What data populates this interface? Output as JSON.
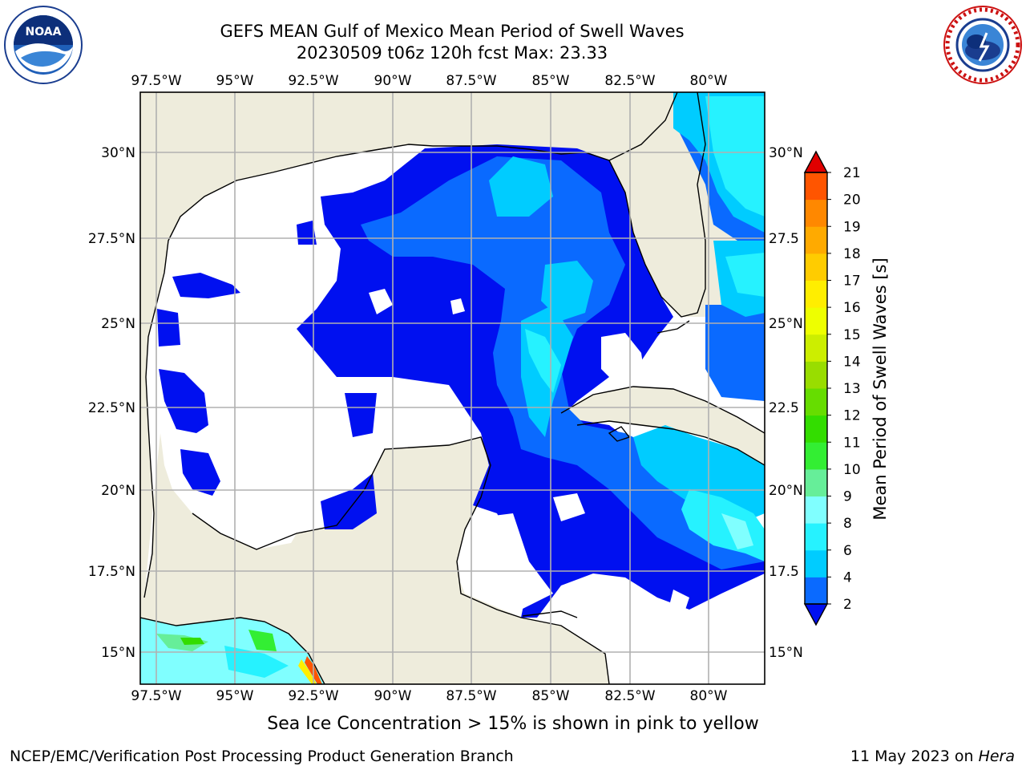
{
  "header": {
    "title_line1": "GEFS MEAN Gulf of Mexico Mean Period of Swell Waves",
    "title_line2": "20230509 t06z 120h fcst   Max: 23.33"
  },
  "logos": {
    "left": "NOAA logo",
    "right": "National Weather Service logo"
  },
  "map": {
    "lon_labels": [
      "97.5°W",
      "95°W",
      "92.5°W",
      "90°W",
      "87.5°W",
      "85°W",
      "82.5°W",
      "80°W"
    ],
    "lat_labels_left": [
      "30°N",
      "27.5°N",
      "25°N",
      "22.5°N",
      "20°N",
      "17.5°N",
      "15°N"
    ],
    "lat_labels_right": [
      "30°N",
      "27.5",
      "25°N",
      "22.5",
      "20°N",
      "17.5",
      "15°N"
    ],
    "colors": {
      "land": "#eeecdc",
      "coastline": "#000000",
      "gridlines": "#b0b0b0",
      "under_2s": "#0010f0",
      "2_4s": "#0a6aff",
      "4_6s": "#00ccff",
      "6_8s": "#26f2ff",
      "8_9s": "#80ffff",
      "9_10s": "#66ee99"
    }
  },
  "colorbar": {
    "label": "Mean Period of Swell Waves [s]",
    "ticks": [
      "2",
      "4",
      "6",
      "8",
      "9",
      "10",
      "11",
      "12",
      "13",
      "14",
      "15",
      "16",
      "17",
      "18",
      "19",
      "20",
      "21"
    ],
    "colors": [
      "#0a6aff",
      "#00ccff",
      "#26f2ff",
      "#80ffff",
      "#66ee99",
      "#33ee33",
      "#33dd00",
      "#66dd00",
      "#99dd00",
      "#ccee00",
      "#eeff00",
      "#ffee00",
      "#ffcc00",
      "#ffaa00",
      "#ff8800",
      "#ff5500",
      "#ff2200"
    ],
    "under_color": "#0010f0",
    "over_color": "#e00000"
  },
  "footer": {
    "note": "Sea Ice Concentration > 15% is shown in pink to yellow",
    "credit": "NCEP/EMC/Verification Post Processing Product Generation Branch",
    "date": "11 May 2023 on",
    "host": "Hera"
  }
}
